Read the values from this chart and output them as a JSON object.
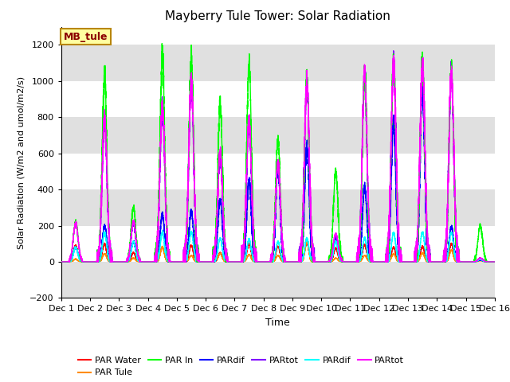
{
  "title": "Mayberry Tule Tower: Solar Radiation",
  "xlabel": "Time",
  "ylabel": "Solar Radiation (W/m2 and umol/m2/s)",
  "ylim": [
    -200,
    1300
  ],
  "yticks": [
    -200,
    0,
    200,
    400,
    600,
    800,
    1000,
    1200
  ],
  "xlim": [
    0,
    15
  ],
  "xtick_labels": [
    "Dec 1",
    "Dec 2",
    "Dec 3",
    "Dec 4",
    "Dec 5",
    "Dec 6",
    "Dec 7",
    "Dec 8",
    "Dec 9",
    "Dec 10",
    "Dec 11",
    "Dec 12",
    "Dec 13",
    "Dec 14",
    "Dec 15",
    "Dec 16"
  ],
  "annotation_text": "MB_tule",
  "background_color": "#ffffff",
  "hspan_color": "#e0e0e0",
  "series": [
    {
      "name": "PAR Water",
      "color": "#ff0000"
    },
    {
      "name": "PAR Tule",
      "color": "#ff8c00"
    },
    {
      "name": "PAR In",
      "color": "#00ff00"
    },
    {
      "name": "PARdif",
      "color": "#0000ff"
    },
    {
      "name": "PARtot",
      "color": "#8000ff"
    },
    {
      "name": "PARdif",
      "color": "#00ffff"
    },
    {
      "name": "PARtot",
      "color": "#ff00ff"
    }
  ],
  "day_peaks": [
    {
      "day": 1,
      "green": 220,
      "magenta": 210,
      "red": 90,
      "orange": 15,
      "blue": 80,
      "purple": 80,
      "cyan": 80
    },
    {
      "day": 2,
      "green": 1040,
      "magenta": 790,
      "red": 100,
      "orange": 45,
      "blue": 200,
      "purple": 780,
      "cyan": 160
    },
    {
      "day": 3,
      "green": 300,
      "magenta": 220,
      "red": 50,
      "orange": 20,
      "blue": 110,
      "purple": 210,
      "cyan": 110
    },
    {
      "day": 4,
      "green": 1160,
      "magenta": 860,
      "red": 80,
      "orange": 80,
      "blue": 260,
      "purple": 850,
      "cyan": 165
    },
    {
      "day": 5,
      "green": 1120,
      "magenta": 1010,
      "red": 90,
      "orange": 35,
      "blue": 280,
      "purple": 1000,
      "cyan": 165
    },
    {
      "day": 6,
      "green": 870,
      "magenta": 600,
      "red": 50,
      "orange": 45,
      "blue": 340,
      "purple": 590,
      "cyan": 130
    },
    {
      "day": 7,
      "green": 1090,
      "magenta": 780,
      "red": 100,
      "orange": 40,
      "blue": 450,
      "purple": 770,
      "cyan": 125
    },
    {
      "day": 8,
      "green": 680,
      "magenta": 545,
      "red": 85,
      "orange": 35,
      "blue": 510,
      "purple": 540,
      "cyan": 110
    },
    {
      "day": 9,
      "green": 1010,
      "magenta": 1000,
      "red": 105,
      "orange": 110,
      "blue": 640,
      "purple": 990,
      "cyan": 130
    },
    {
      "day": 10,
      "green": 500,
      "magenta": 155,
      "red": 75,
      "orange": 20,
      "blue": 130,
      "purple": 150,
      "cyan": 110
    },
    {
      "day": 11,
      "green": 1060,
      "magenta": 1050,
      "red": 95,
      "orange": 35,
      "blue": 420,
      "purple": 1040,
      "cyan": 130
    },
    {
      "day": 12,
      "green": 1100,
      "magenta": 1100,
      "red": 80,
      "orange": 45,
      "blue": 780,
      "purple": 1090,
      "cyan": 160
    },
    {
      "day": 13,
      "green": 1100,
      "magenta": 1095,
      "red": 85,
      "orange": 50,
      "blue": 960,
      "purple": 1080,
      "cyan": 165
    },
    {
      "day": 14,
      "green": 1060,
      "magenta": 1050,
      "red": 100,
      "orange": 65,
      "blue": 195,
      "purple": 1040,
      "cyan": 160
    },
    {
      "day": 15,
      "green": 200,
      "magenta": 20,
      "red": 20,
      "orange": 5,
      "blue": 10,
      "purple": 20,
      "cyan": 15
    }
  ]
}
